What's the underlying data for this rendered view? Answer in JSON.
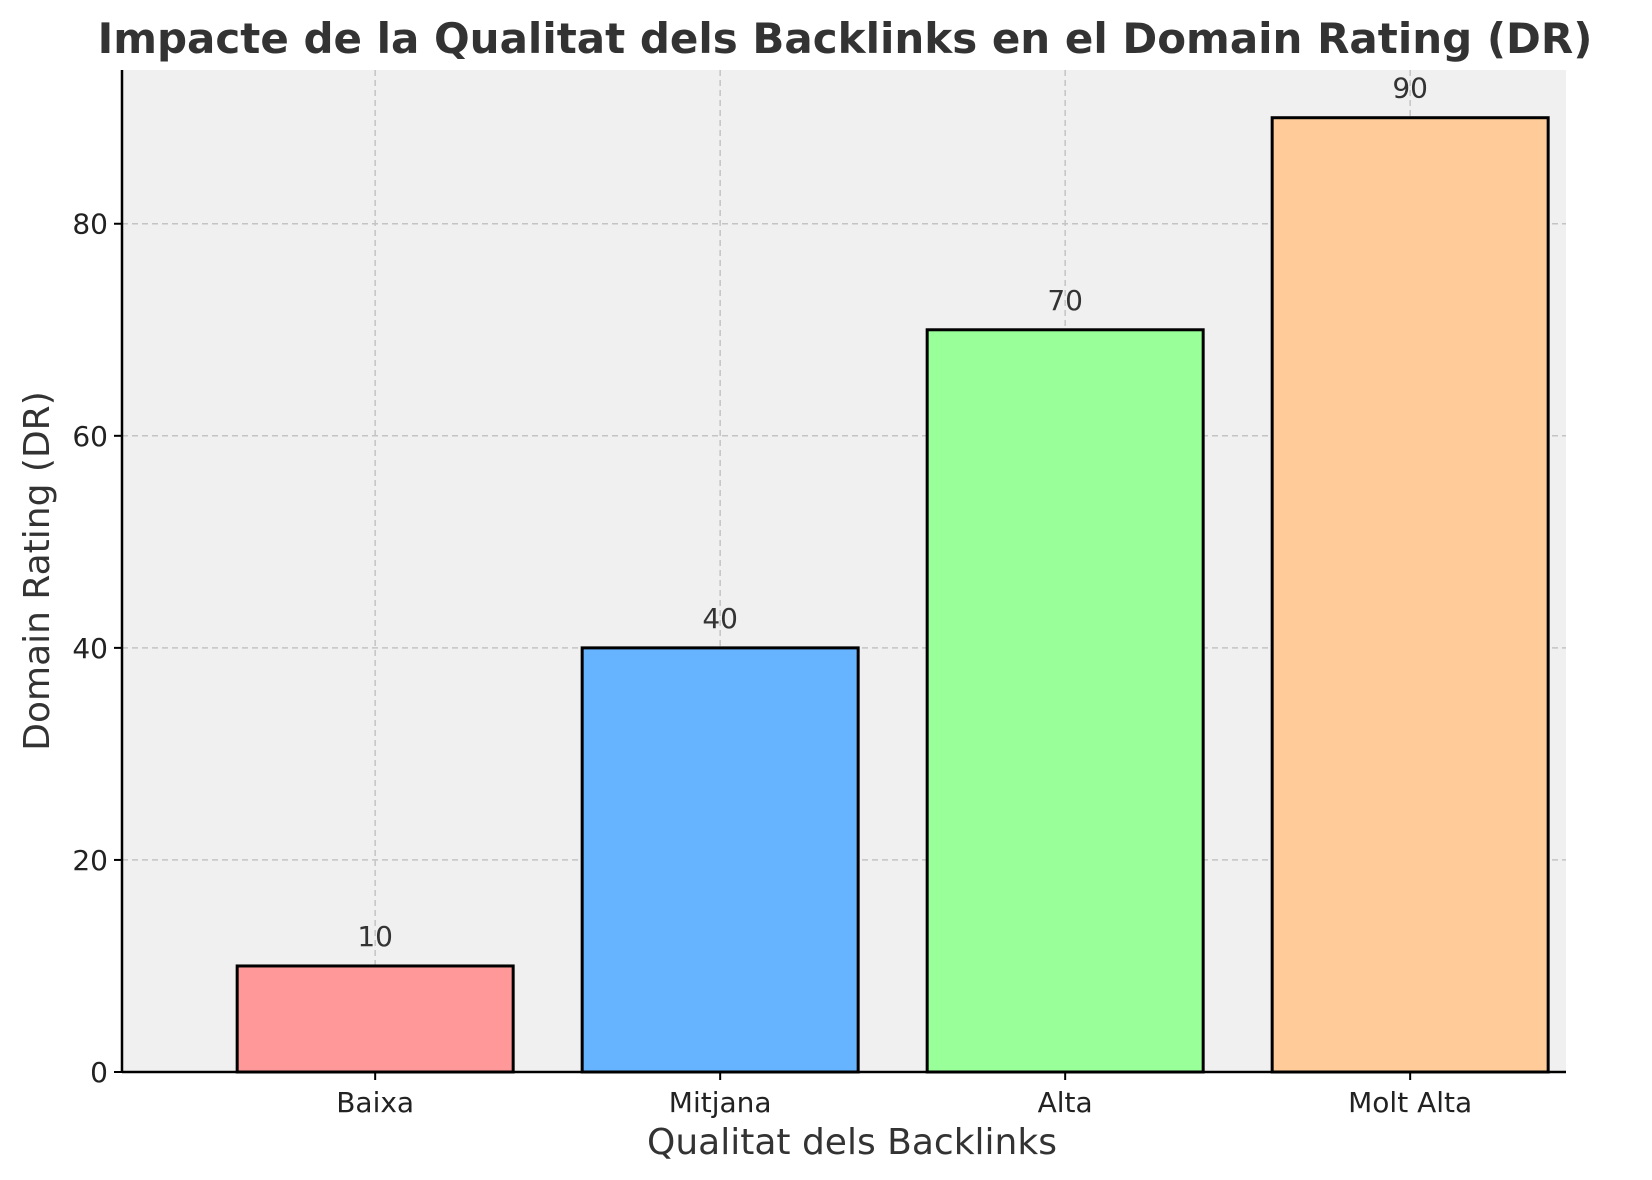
{
  "chart_data": {
    "type": "bar",
    "title": "Impacte de la Qualitat dels Backlinks en el Domain Rating (DR)",
    "xlabel": "Qualitat dels Backlinks",
    "ylabel": "Domain Rating (DR)",
    "categories": [
      "Baixa",
      "Mitjana",
      "Alta",
      "Molt Alta"
    ],
    "values": [
      10,
      40,
      70,
      90
    ],
    "data_labels": [
      "10",
      "40",
      "70",
      "90"
    ],
    "colors": [
      "#ff9999",
      "#66b3ff",
      "#99ff99",
      "#ffcc99"
    ],
    "edge_color": "#000000",
    "plot_background": "#f0f0f0",
    "ylim": [
      0,
      94.5
    ],
    "yticks": [
      0,
      20,
      40,
      60,
      80
    ],
    "ytick_labels": [
      "0",
      "20",
      "40",
      "60",
      "80"
    ],
    "grid": true,
    "grid_style": "dashed",
    "legend": "none"
  }
}
